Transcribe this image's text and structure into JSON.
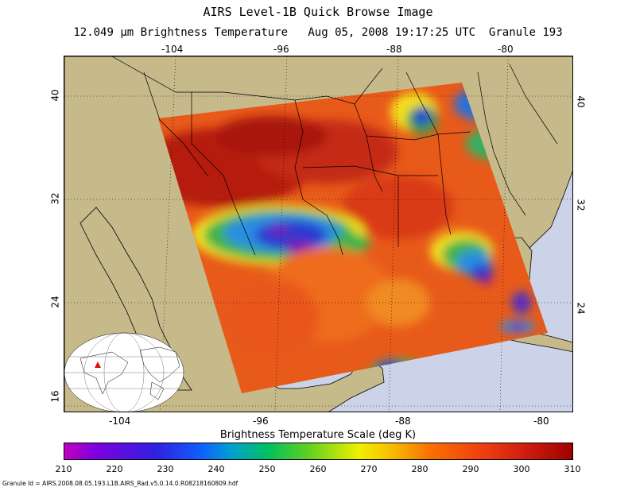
{
  "title": "AIRS Level-1B Quick Browse Image",
  "subtitle": "12.049 µm Brightness Temperature   Aug 05, 2008 19:17:25 UTC  Granule 193",
  "lon_ticks": [
    "-104",
    "-96",
    "-88",
    "-80"
  ],
  "lat_ticks": [
    "40",
    "32",
    "24",
    "16"
  ],
  "colorbar": {
    "title": "Brightness Temperature Scale (deg K)",
    "ticks": [
      "210",
      "220",
      "230",
      "240",
      "250",
      "260",
      "270",
      "280",
      "290",
      "300",
      "310"
    ],
    "min": 210,
    "max": 310
  },
  "granule_id": "Granule Id = AIRS.2008.08.05.193.L1B.AIRS_Rad.v5.0.14.0.R08218160809.hdf",
  "colors": {
    "land": "#c6b98a",
    "ocean": "#ccd3e8",
    "warm": "#e85a1a",
    "hot": "#b51e10",
    "cold": "#7a18b0"
  }
}
